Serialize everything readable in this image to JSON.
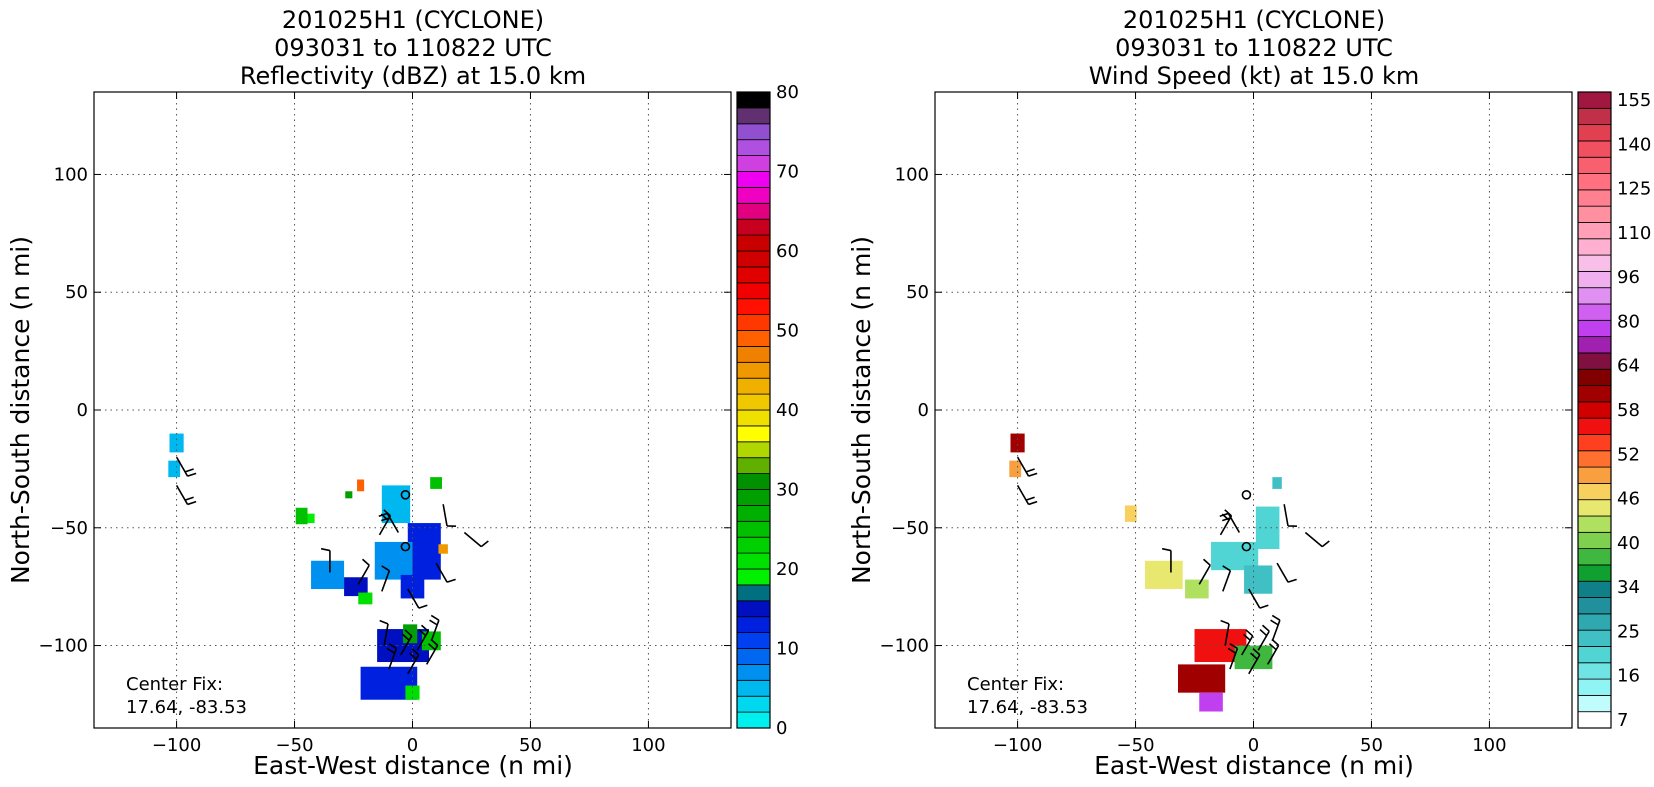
{
  "chart_data": [
    {
      "type": "heatmap",
      "title": [
        "201025H1 (CYCLONE)",
        "093031 to 110822 UTC",
        "Reflectivity (dBZ) at 15.0 km"
      ],
      "xlabel": "East-West distance (n mi)",
      "ylabel": "North-South distance (n mi)",
      "xlim": [
        -135,
        135
      ],
      "ylim": [
        -135,
        135
      ],
      "xticks": [
        -100,
        -50,
        0,
        50,
        100
      ],
      "yticks": [
        -100,
        -50,
        0,
        50,
        100
      ],
      "xtick_labels": [
        "−100",
        "−50",
        "0",
        "50",
        "100"
      ],
      "ytick_labels": [
        "−100",
        "−50",
        "0",
        "50",
        "100"
      ],
      "grid": true,
      "annotation": [
        "Center Fix:",
        "17.64, -83.53"
      ],
      "colorbar": {
        "min": 0,
        "max": 80,
        "tick_values": [
          0,
          10,
          20,
          30,
          40,
          50,
          60,
          70,
          80
        ],
        "tick_labels": [
          "0",
          "10",
          "20",
          "30",
          "40",
          "50",
          "60",
          "70",
          "80"
        ],
        "colors": [
          "#00f0f0",
          "#00d8f0",
          "#00b8f0",
          "#0090f0",
          "#0068f0",
          "#0040f0",
          "#0020e0",
          "#0010c0",
          "#007080",
          "#00f000",
          "#00e000",
          "#00d000",
          "#00c000",
          "#00b000",
          "#00a000",
          "#009000",
          "#60b000",
          "#b0d800",
          "#ffff00",
          "#f0e000",
          "#f0c800",
          "#f0b000",
          "#f09800",
          "#f08000",
          "#ff6000",
          "#ff3800",
          "#ff1000",
          "#f00000",
          "#e00000",
          "#d00000",
          "#c80000",
          "#c80020",
          "#e00080",
          "#f000c0",
          "#f000f0",
          "#d040e0",
          "#b050e0",
          "#9050d0",
          "#603070",
          "#000000"
        ]
      },
      "cells": [
        {
          "x": -100,
          "y": -14,
          "w": 6,
          "h": 8,
          "value": 2
        },
        {
          "x": -101,
          "y": -25,
          "w": 5,
          "h": 7,
          "value": 2
        },
        {
          "x": -47,
          "y": -45,
          "w": 5,
          "h": 7,
          "value": 12
        },
        {
          "x": -43,
          "y": -46,
          "w": 3,
          "h": 4,
          "value": 9
        },
        {
          "x": -22,
          "y": -32,
          "w": 3,
          "h": 5,
          "value": 24
        },
        {
          "x": -27,
          "y": -36,
          "w": 3,
          "h": 3,
          "value": 14
        },
        {
          "x": 10,
          "y": -31,
          "w": 5,
          "h": 5,
          "value": 12
        },
        {
          "x": -36,
          "y": -70,
          "w": 14,
          "h": 12,
          "value": 3
        },
        {
          "x": -24,
          "y": -75,
          "w": 10,
          "h": 8,
          "value": 7
        },
        {
          "x": -20,
          "y": -80,
          "w": 6,
          "h": 5,
          "value": 10
        },
        {
          "x": -7,
          "y": -40,
          "w": 12,
          "h": 16,
          "value": 2
        },
        {
          "x": 5,
          "y": -60,
          "w": 14,
          "h": 24,
          "value": 6
        },
        {
          "x": -8,
          "y": -64,
          "w": 16,
          "h": 16,
          "value": 3
        },
        {
          "x": 0,
          "y": -75,
          "w": 10,
          "h": 10,
          "value": 6
        },
        {
          "x": 13,
          "y": -59,
          "w": 4,
          "h": 4,
          "value": 22
        },
        {
          "x": -4,
          "y": -100,
          "w": 22,
          "h": 14,
          "value": 7
        },
        {
          "x": -10,
          "y": -116,
          "w": 24,
          "h": 14,
          "value": 6
        },
        {
          "x": 8,
          "y": -98,
          "w": 8,
          "h": 8,
          "value": 12
        },
        {
          "x": -1,
          "y": -95,
          "w": 6,
          "h": 8,
          "value": 14
        },
        {
          "x": 0,
          "y": -120,
          "w": 6,
          "h": 6,
          "value": 10
        }
      ]
    },
    {
      "type": "heatmap",
      "title": [
        "201025H1 (CYCLONE)",
        "093031 to 110822 UTC",
        "Wind Speed (kt) at 15.0 km"
      ],
      "xlabel": "East-West distance (n mi)",
      "ylabel": "North-South distance (n mi)",
      "xlim": [
        -135,
        135
      ],
      "ylim": [
        -135,
        135
      ],
      "xticks": [
        -100,
        -50,
        0,
        50,
        100
      ],
      "yticks": [
        -100,
        -50,
        0,
        50,
        100
      ],
      "xtick_labels": [
        "−100",
        "−50",
        "0",
        "50",
        "100"
      ],
      "ytick_labels": [
        "−100",
        "−50",
        "0",
        "50",
        "100"
      ],
      "grid": true,
      "annotation": [
        "Center Fix:",
        "17.64, -83.53"
      ],
      "colorbar": {
        "tick_labels": [
          "7",
          "16",
          "25",
          "34",
          "40",
          "46",
          "52",
          "58",
          "64",
          "80",
          "96",
          "110",
          "125",
          "140",
          "155"
        ],
        "colors": [
          "#ffffff",
          "#c0fcfc",
          "#90f4f4",
          "#70e4e4",
          "#50d4d4",
          "#40c0c4",
          "#30a8b0",
          "#20909c",
          "#108088",
          "#10a030",
          "#40b840",
          "#80d050",
          "#b0e060",
          "#e8e870",
          "#f8d060",
          "#f8a040",
          "#ff7030",
          "#ff4020",
          "#f01010",
          "#d00000",
          "#a00000",
          "#800000",
          "#801040",
          "#a020b0",
          "#c040f0",
          "#d060f0",
          "#e090f0",
          "#f0b0f0",
          "#f8c0e8",
          "#ffb0d0",
          "#ffa0b8",
          "#ff90a0",
          "#ff8090",
          "#ff7080",
          "#f86070",
          "#f05060",
          "#e04050",
          "#c03048",
          "#a01840"
        ]
      },
      "cells": [
        {
          "x": -100,
          "y": -14,
          "w": 6,
          "h": 8,
          "value": 20
        },
        {
          "x": -101,
          "y": -25,
          "w": 5,
          "h": 7,
          "value": 15
        },
        {
          "x": -52,
          "y": -44,
          "w": 5,
          "h": 7,
          "value": 14
        },
        {
          "x": 10,
          "y": -31,
          "w": 4,
          "h": 5,
          "value": 5
        },
        {
          "x": -38,
          "y": -70,
          "w": 16,
          "h": 12,
          "value": 13
        },
        {
          "x": -24,
          "y": -76,
          "w": 10,
          "h": 8,
          "value": 12
        },
        {
          "x": 6,
          "y": -50,
          "w": 10,
          "h": 18,
          "value": 4
        },
        {
          "x": -8,
          "y": -62,
          "w": 20,
          "h": 12,
          "value": 4
        },
        {
          "x": 2,
          "y": -72,
          "w": 12,
          "h": 12,
          "value": 5
        },
        {
          "x": -14,
          "y": -100,
          "w": 22,
          "h": 14,
          "value": 18
        },
        {
          "x": -22,
          "y": -114,
          "w": 20,
          "h": 12,
          "value": 20
        },
        {
          "x": 0,
          "y": -105,
          "w": 16,
          "h": 10,
          "value": 10
        },
        {
          "x": -18,
          "y": -124,
          "w": 10,
          "h": 8,
          "value": 24
        }
      ]
    }
  ]
}
